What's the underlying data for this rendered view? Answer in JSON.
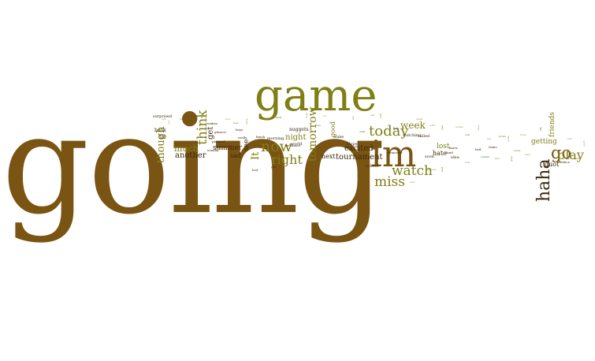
{
  "palette": {
    "brown": "#7a5412",
    "olive": "#7f7f16",
    "gold": "#a39a2a",
    "dark": "#3e2a0f",
    "green": "#3f6b2a",
    "khaki": "#9c9a4e"
  },
  "words": [
    {
      "text": "going",
      "size": 174,
      "color": "brown",
      "vertical": false
    },
    {
      "text": "game",
      "size": 56,
      "color": "olive",
      "vertical": false
    },
    {
      "text": "im",
      "size": 46,
      "color": "brown",
      "vertical": false
    },
    {
      "text": "haha",
      "size": 22,
      "color": "dark",
      "vertical": true
    },
    {
      "text": "go",
      "size": 21,
      "color": "brown",
      "vertical": false
    },
    {
      "text": "play",
      "size": 16,
      "color": "olive",
      "vertical": false
    },
    {
      "text": "now",
      "size": 19,
      "color": "olive",
      "vertical": false
    },
    {
      "text": "today",
      "size": 18,
      "color": "olive",
      "vertical": false
    },
    {
      "text": "watch",
      "size": 17,
      "color": "olive",
      "vertical": false
    },
    {
      "text": "miss",
      "size": 17,
      "color": "olive",
      "vertical": false
    },
    {
      "text": "right",
      "size": 16,
      "color": "olive",
      "vertical": false
    },
    {
      "text": "think",
      "size": 17,
      "color": "olive",
      "vertical": true
    },
    {
      "text": "though",
      "size": 13,
      "color": "olive",
      "vertical": true
    },
    {
      "text": "tomorrow",
      "size": 14,
      "color": "olive",
      "vertical": true
    },
    {
      "text": "It",
      "size": 13,
      "color": "olive",
      "vertical": true
    },
    {
      "text": "week",
      "size": 12,
      "color": "olive",
      "vertical": false
    },
    {
      "text": "tournament",
      "size": 10,
      "color": "dark",
      "vertical": false
    },
    {
      "text": "excited",
      "size": 10,
      "color": "dark",
      "vertical": false
    },
    {
      "text": "much",
      "size": 11,
      "color": "olive",
      "vertical": false
    },
    {
      "text": "another",
      "size": 10,
      "color": "dark",
      "vertical": false
    },
    {
      "text": "summer",
      "size": 9,
      "color": "dark",
      "vertical": false
    },
    {
      "text": "night",
      "size": 10,
      "color": "olive",
      "vertical": false
    },
    {
      "text": "see",
      "size": 9,
      "color": "dark",
      "vertical": true
    },
    {
      "text": "get",
      "size": 10,
      "color": "dark",
      "vertical": true
    },
    {
      "text": "getting",
      "size": 9,
      "color": "olive",
      "vertical": false
    },
    {
      "text": "friends",
      "size": 9,
      "color": "olive",
      "vertical": true
    },
    {
      "text": "quot",
      "size": 8,
      "color": "dark",
      "vertical": false
    },
    {
      "text": "lost",
      "size": 9,
      "color": "olive",
      "vertical": false
    },
    {
      "text": "hate",
      "size": 8,
      "color": "dark",
      "vertical": false
    },
    {
      "text": "next",
      "size": 8,
      "color": "dark",
      "vertical": false
    },
    {
      "text": "good",
      "size": 8,
      "color": "olive",
      "vertical": true
    },
    {
      "text": "sad",
      "size": 8,
      "color": "dark",
      "vertical": false
    },
    {
      "text": "far",
      "size": 6,
      "color": "dark",
      "vertical": false
    },
    {
      "text": "book",
      "size": 6,
      "color": "dark",
      "vertical": false
    },
    {
      "text": "surprised",
      "size": 5,
      "color": "dark",
      "vertical": false
    },
    {
      "text": "nuggets",
      "size": 6,
      "color": "dark",
      "vertical": false
    },
    {
      "text": "world",
      "size": 5,
      "color": "dark",
      "vertical": false
    },
    {
      "text": "morning",
      "size": 5,
      "color": "dark",
      "vertical": false
    },
    {
      "text": "Hope",
      "size": 5,
      "color": "dark",
      "vertical": false
    },
    {
      "text": "wake",
      "size": 5,
      "color": "dark",
      "vertical": false
    },
    {
      "text": "school",
      "size": 5,
      "color": "dark",
      "vertical": false
    },
    {
      "text": "watching",
      "size": 5,
      "color": "dark",
      "vertical": false
    },
    {
      "text": "called",
      "size": 5,
      "color": "dark",
      "vertical": false
    },
    {
      "text": "semester",
      "size": 4,
      "color": "dark",
      "vertical": false
    },
    {
      "text": "soon",
      "size": 5,
      "color": "dark",
      "vertical": false
    },
    {
      "text": "idea",
      "size": 5,
      "color": "dark",
      "vertical": false
    },
    {
      "text": "knew",
      "size": 4,
      "color": "dark",
      "vertical": false
    },
    {
      "text": "kind",
      "size": 4,
      "color": "dark",
      "vertical": false
    },
    {
      "text": "bed",
      "size": 4,
      "color": "dark",
      "vertical": false
    },
    {
      "text": "trans",
      "size": 4,
      "color": "dark",
      "vertical": false
    },
    {
      "text": "reduce",
      "size": 4,
      "color": "dark",
      "vertical": false
    },
    {
      "text": "finish",
      "size": 4,
      "color": "dark",
      "vertical": false
    },
    {
      "text": "planned",
      "size": 4,
      "color": "dark",
      "vertical": false
    },
    {
      "text": "glasses",
      "size": 4,
      "color": "dark",
      "vertical": false
    },
    {
      "text": "makes",
      "size": 4,
      "color": "dark",
      "vertical": false
    },
    {
      "text": "usually",
      "size": 4,
      "color": "dark",
      "vertical": false
    },
    {
      "text": "boys",
      "size": 4,
      "color": "dark",
      "vertical": false
    },
    {
      "text": "really",
      "size": 4,
      "color": "dark",
      "vertical": false
    },
    {
      "text": "freshmen",
      "size": 4,
      "color": "dark",
      "vertical": false
    },
    {
      "text": "lost",
      "size": 4,
      "color": "dark",
      "vertical": false
    },
    {
      "text": "got",
      "size": 4,
      "color": "dark",
      "vertical": false
    },
    {
      "text": "hey",
      "size": 4,
      "color": "dark",
      "vertical": false
    },
    {
      "text": "drama",
      "size": 3,
      "color": "dark",
      "vertical": false
    },
    {
      "text": "played",
      "size": 3,
      "color": "dark",
      "vertical": false
    },
    {
      "text": "plans",
      "size": 3,
      "color": "dark",
      "vertical": false
    },
    {
      "text": "tired",
      "size": 3,
      "color": "dark",
      "vertical": false
    },
    {
      "text": "early",
      "size": 3,
      "color": "dark",
      "vertical": false
    },
    {
      "text": "work",
      "size": 3,
      "color": "dark",
      "vertical": false
    }
  ],
  "filler": [
    {
      "text": "ugh",
      "size": 3,
      "color": "khaki",
      "vertical": false
    },
    {
      "text": "yes",
      "size": 3,
      "color": "khaki",
      "vertical": true
    },
    {
      "text": "team",
      "size": 3,
      "color": "olive",
      "vertical": false
    },
    {
      "text": "win",
      "size": 3,
      "color": "khaki",
      "vertical": false
    },
    {
      "text": "fun",
      "size": 3,
      "color": "green",
      "vertical": true
    },
    {
      "text": "love",
      "size": 3,
      "color": "khaki",
      "vertical": false
    },
    {
      "text": "best",
      "size": 3,
      "color": "olive",
      "vertical": false
    },
    {
      "text": "sleep",
      "size": 3,
      "color": "khaki",
      "vertical": true
    },
    {
      "text": "home",
      "size": 3,
      "color": "khaki",
      "vertical": false
    },
    {
      "text": "back",
      "size": 3,
      "color": "green",
      "vertical": false
    },
    {
      "text": "hope",
      "size": 3,
      "color": "khaki",
      "vertical": true
    },
    {
      "text": "time",
      "size": 3,
      "color": "olive",
      "vertical": false
    },
    {
      "text": "lol",
      "size": 3,
      "color": "khaki",
      "vertical": false
    },
    {
      "text": "day",
      "size": 3,
      "color": "khaki",
      "vertical": true
    },
    {
      "text": "went",
      "size": 3,
      "color": "green",
      "vertical": false
    },
    {
      "text": "last",
      "size": 3,
      "color": "khaki",
      "vertical": false
    },
    {
      "text": "still",
      "size": 3,
      "color": "olive",
      "vertical": true
    },
    {
      "text": "made",
      "size": 3,
      "color": "khaki",
      "vertical": false
    },
    {
      "text": "wish",
      "size": 3,
      "color": "khaki",
      "vertical": false
    },
    {
      "text": "year",
      "size": 3,
      "color": "green",
      "vertical": true
    },
    {
      "text": "gonna",
      "size": 3,
      "color": "khaki",
      "vertical": false
    },
    {
      "text": "wait",
      "size": 3,
      "color": "olive",
      "vertical": false
    },
    {
      "text": "class",
      "size": 3,
      "color": "khaki",
      "vertical": true
    },
    {
      "text": "yay",
      "size": 3,
      "color": "khaki",
      "vertical": false
    },
    {
      "text": "hours",
      "size": 3,
      "color": "green",
      "vertical": false
    },
    {
      "text": "need",
      "size": 3,
      "color": "khaki",
      "vertical": true
    },
    {
      "text": "ready",
      "size": 3,
      "color": "olive",
      "vertical": false
    },
    {
      "text": "done",
      "size": 3,
      "color": "khaki",
      "vertical": false
    },
    {
      "text": "later",
      "size": 3,
      "color": "khaki",
      "vertical": false
    },
    {
      "text": "life",
      "size": 3,
      "color": "green",
      "vertical": true
    },
    {
      "text": "sick",
      "size": 3,
      "color": "khaki",
      "vertical": false
    },
    {
      "text": "game",
      "size": 3,
      "color": "olive",
      "vertical": false
    },
    {
      "text": "party",
      "size": 3,
      "color": "khaki",
      "vertical": true
    },
    {
      "text": "new",
      "size": 3,
      "color": "khaki",
      "vertical": false
    },
    {
      "text": "tonight",
      "size": 3,
      "color": "green",
      "vertical": false
    },
    {
      "text": "first",
      "size": 3,
      "color": "khaki",
      "vertical": false
    },
    {
      "text": "guys",
      "size": 3,
      "color": "olive",
      "vertical": true
    },
    {
      "text": "sure",
      "size": 3,
      "color": "khaki",
      "vertical": false
    },
    {
      "text": "weekend",
      "size": 3,
      "color": "khaki",
      "vertical": false
    },
    {
      "text": "bad",
      "size": 3,
      "color": "green",
      "vertical": true
    }
  ]
}
